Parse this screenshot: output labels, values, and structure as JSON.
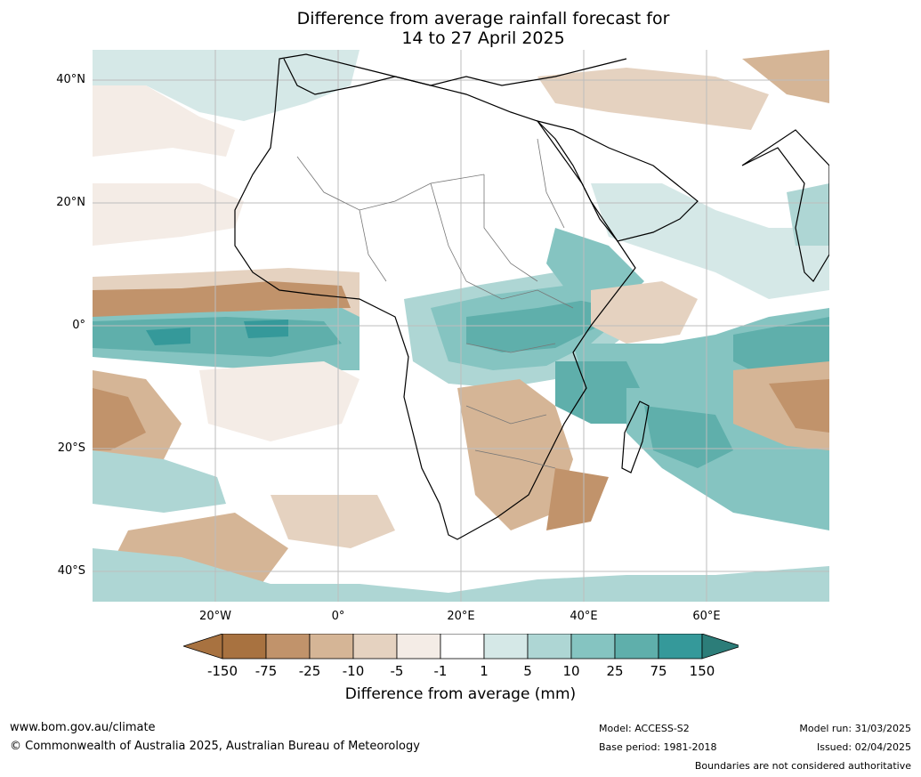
{
  "title": {
    "line1": "Difference from average rainfall forecast for",
    "line2": "14 to 27 April 2025"
  },
  "axes": {
    "lat_labels": [
      "40°N",
      "20°N",
      "0°",
      "20°S",
      "40°S"
    ],
    "lon_labels": [
      "20°W",
      "0°",
      "20°E",
      "40°E",
      "60°E"
    ]
  },
  "colorbar": {
    "ticks": [
      "-150",
      "-75",
      "-25",
      "-10",
      "-5",
      "-1",
      "1",
      "5",
      "10",
      "25",
      "75",
      "150"
    ],
    "colors": [
      "#a87240",
      "#c1936b",
      "#d5b596",
      "#e5d2c0",
      "#f4ece6",
      "#ffffff",
      "#d5e8e7",
      "#aed6d4",
      "#85c4c1",
      "#5fafab",
      "#35999a",
      "#2c7d79"
    ],
    "title": "Difference from average (mm)"
  },
  "footer": {
    "website": "www.bom.gov.au/climate",
    "copyright": "© Commonwealth of Australia 2025, Australian Bureau of Meteorology",
    "model": "Model: ACCESS-S2",
    "base_period": "Base period: 1981-2018",
    "model_run": "Model run: 31/03/2025",
    "issued": "Issued: 02/04/2025",
    "disclaimer": "Boundaries are not considered authoritative"
  }
}
